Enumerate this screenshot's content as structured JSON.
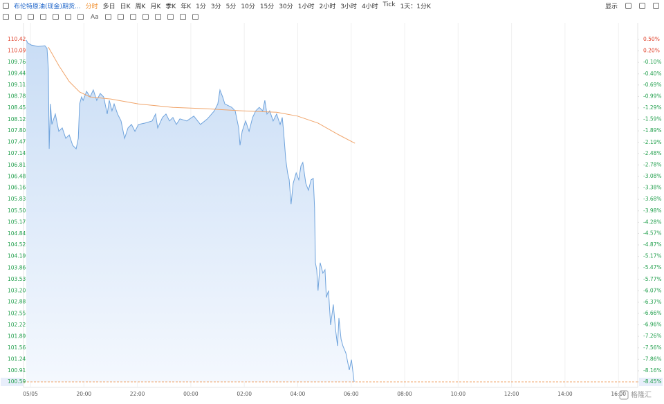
{
  "toolbar": {
    "symbol": "布伦特原油(现金)期货...",
    "periods": [
      "分时",
      "多日",
      "日K",
      "周K",
      "月K",
      "季K",
      "年K",
      "1分",
      "3分",
      "5分",
      "10分",
      "15分",
      "30分",
      "1小时",
      "2小时",
      "3小时",
      "4小时",
      "Tick",
      "1天：1分K"
    ],
    "display": "显示",
    "text_tool": "Aa"
  },
  "brand": "格隆汇",
  "chart_data": {
    "type": "line",
    "xlim": [
      -0.26,
      22.72
    ],
    "xticks": [
      {
        "value": 0,
        "label": "05/05"
      },
      {
        "value": 2,
        "label": "20:00"
      },
      {
        "value": 4,
        "label": "22:00"
      },
      {
        "value": 6,
        "label": "00:00"
      },
      {
        "value": 8,
        "label": "02:00"
      },
      {
        "value": 10,
        "label": "04:00"
      },
      {
        "value": 12,
        "label": "06:00"
      },
      {
        "value": 14,
        "label": "08:00"
      },
      {
        "value": 16,
        "label": "10:00"
      },
      {
        "value": 18,
        "label": "12:00"
      },
      {
        "value": 20,
        "label": "14:00"
      },
      {
        "value": 22,
        "label": "16:00"
      }
    ],
    "grid": "x",
    "ylim": [
      100.59,
      110.42
    ],
    "yticks": [
      110.42,
      110.09,
      109.76,
      109.44,
      109.11,
      108.78,
      108.45,
      108.12,
      {
        "value": 107.8,
        "label": "107.80"
      },
      107.47,
      107.14,
      106.81,
      106.48,
      106.16,
      105.83,
      {
        "value": 105.5,
        "label": "105.50"
      },
      105.17,
      104.84,
      104.52,
      104.19,
      103.86,
      103.53,
      {
        "value": 103.2,
        "label": "103.20"
      },
      102.88,
      102.55,
      102.22,
      101.89,
      101.56,
      101.24,
      100.91,
      100.59
    ],
    "y2lim": [
      0.5,
      -8.45
    ],
    "y2ticks": [
      {
        "value": 0.5,
        "label": "0.50%"
      },
      {
        "value": 0.2,
        "label": "0.20%"
      },
      {
        "value": -0.1,
        "label": "-0.10%"
      },
      {
        "value": -0.4,
        "label": "-0.40%"
      },
      {
        "value": -0.69,
        "label": "-0.69%"
      },
      {
        "value": -0.99,
        "label": "-0.99%"
      },
      {
        "value": -1.29,
        "label": "-1.29%"
      },
      {
        "value": -1.59,
        "label": "-1.59%"
      },
      {
        "value": -1.89,
        "label": "-1.89%"
      },
      {
        "value": -2.19,
        "label": "-2.19%"
      },
      {
        "value": -2.48,
        "label": "-2.48%"
      },
      {
        "value": -2.78,
        "label": "-2.78%"
      },
      {
        "value": -3.08,
        "label": "-3.08%"
      },
      {
        "value": -3.38,
        "label": "-3.38%"
      },
      {
        "value": -3.68,
        "label": "-3.68%"
      },
      {
        "value": -3.98,
        "label": "-3.98%"
      },
      {
        "value": -4.28,
        "label": "-4.28%"
      },
      {
        "value": -4.57,
        "label": "-4.57%"
      },
      {
        "value": -4.87,
        "label": "-4.87%"
      },
      {
        "value": -5.17,
        "label": "-5.17%"
      },
      {
        "value": -5.47,
        "label": "-5.47%"
      },
      {
        "value": -5.77,
        "label": "-5.77%"
      },
      {
        "value": -6.07,
        "label": "-6.07%"
      },
      {
        "value": -6.37,
        "label": "-6.37%"
      },
      {
        "value": -6.66,
        "label": "-6.66%"
      },
      {
        "value": -6.96,
        "label": "-6.96%"
      },
      {
        "value": -7.26,
        "label": "-7.26%"
      },
      {
        "value": -7.56,
        "label": "-7.56%"
      },
      {
        "value": -7.86,
        "label": "-7.86%"
      },
      {
        "value": -8.16,
        "label": "-8.16%"
      },
      {
        "value": -8.45,
        "label": "-8.45%"
      }
    ],
    "series": [
      {
        "color": "#6fa3dc",
        "x": [
          -0.16,
          -0.1,
          0.03,
          0.28,
          0.54,
          0.62,
          0.67,
          0.7,
          0.75,
          0.8,
          0.93,
          1.06,
          1.19,
          1.32,
          1.45,
          1.58,
          1.71,
          1.79,
          1.84,
          1.91,
          1.97,
          2.1,
          2.23,
          2.35,
          2.48,
          2.61,
          2.74,
          2.87,
          2.95,
          3.05,
          3.13,
          3.26,
          3.39,
          3.52,
          3.65,
          3.78,
          3.91,
          4.04,
          4.29,
          4.55,
          4.68,
          4.76,
          4.94,
          5.07,
          5.2,
          5.33,
          5.46,
          5.59,
          5.85,
          6.11,
          6.36,
          6.62,
          6.88,
          7.01,
          7.09,
          7.19,
          7.27,
          7.53,
          7.66,
          7.79,
          7.84,
          7.92,
          8.05,
          8.18,
          8.31,
          8.43,
          8.56,
          8.69,
          8.77,
          8.85,
          8.95,
          9.08,
          9.21,
          9.34,
          9.42,
          9.47,
          9.55,
          9.62,
          9.68,
          9.75,
          9.83,
          9.94,
          10.04,
          10.12,
          10.19,
          10.3,
          10.4,
          10.5,
          10.58,
          10.63,
          10.66,
          10.71,
          10.76,
          10.84,
          10.94,
          11.02,
          11.07,
          11.15,
          11.23,
          11.33,
          11.41,
          11.49,
          11.54,
          11.62,
          11.69,
          11.8,
          11.93,
          12.01,
          12.11
        ],
        "values": [
          110.4,
          110.32,
          110.26,
          110.22,
          110.24,
          110.16,
          109.57,
          107.28,
          108.57,
          107.98,
          108.28,
          107.78,
          107.88,
          107.58,
          107.68,
          107.38,
          107.28,
          107.58,
          108.57,
          108.77,
          108.67,
          108.93,
          108.77,
          108.97,
          108.67,
          108.87,
          108.77,
          108.28,
          108.67,
          108.37,
          108.57,
          108.28,
          108.08,
          107.58,
          107.88,
          107.98,
          107.78,
          107.98,
          108.02,
          108.08,
          108.28,
          107.88,
          108.18,
          108.28,
          108.08,
          108.18,
          107.98,
          108.14,
          108.08,
          108.22,
          107.98,
          108.14,
          108.37,
          108.57,
          108.97,
          108.77,
          108.57,
          108.47,
          108.37,
          107.88,
          107.38,
          107.78,
          108.08,
          107.78,
          108.18,
          108.37,
          108.47,
          108.37,
          108.67,
          108.28,
          108.37,
          108.08,
          108.28,
          107.98,
          108.18,
          107.78,
          106.98,
          106.59,
          106.39,
          105.69,
          106.29,
          106.59,
          106.39,
          106.79,
          106.89,
          106.29,
          106.09,
          106.39,
          106.43,
          105.59,
          104.01,
          103.81,
          103.21,
          104.01,
          103.71,
          103.81,
          103.01,
          103.21,
          102.22,
          102.81,
          102.12,
          101.62,
          102.42,
          101.82,
          101.62,
          101.42,
          100.93,
          101.23,
          100.59
        ]
      },
      {
        "color": "#f0a46a",
        "x": [
          0.67,
          1.06,
          1.45,
          1.84,
          2.23,
          3.0,
          4.04,
          5.33,
          6.62,
          7.92,
          9.21,
          9.99,
          10.76,
          11.54,
          12.14
        ],
        "values": [
          110.2,
          109.67,
          109.21,
          108.91,
          108.77,
          108.71,
          108.57,
          108.47,
          108.43,
          108.37,
          108.33,
          108.22,
          108.02,
          107.68,
          107.44
        ]
      }
    ]
  }
}
